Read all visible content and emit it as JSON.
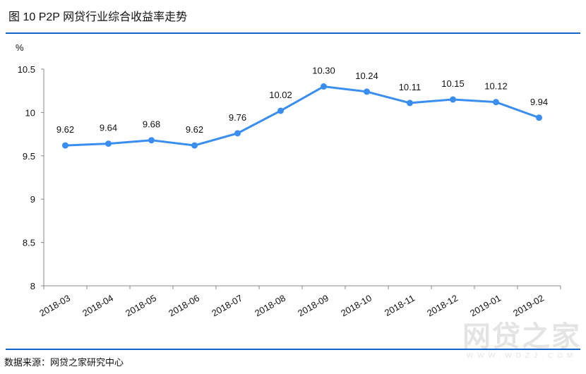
{
  "title": "图 10  P2P 网贷行业综合收益率走势",
  "source": "数据来源：网贷之家研究中心",
  "watermark": {
    "main": "网贷之家",
    "url": "WWW.WDZJ.COM"
  },
  "colors": {
    "line": "#3a8ef0",
    "rule": "#1565c8",
    "axis": "#888888"
  },
  "chart_data": {
    "type": "line",
    "title": "P2P 网贷行业综合收益率走势",
    "ylabel": "%",
    "xlabel": "",
    "ylim": [
      8,
      10.5
    ],
    "yticks": [
      "8",
      "8.5",
      "9",
      "9.5",
      "10",
      "10.5"
    ],
    "ytick_values": [
      8,
      8.5,
      9,
      9.5,
      10,
      10.5
    ],
    "categories": [
      "2018-03",
      "2018-04",
      "2018-05",
      "2018-06",
      "2018-07",
      "2018-08",
      "2018-09",
      "2018-10",
      "2018-11",
      "2018-12",
      "2019-01",
      "2019-02"
    ],
    "series": [
      {
        "name": "综合收益率",
        "values": [
          9.62,
          9.64,
          9.68,
          9.62,
          9.76,
          10.02,
          10.3,
          10.24,
          10.11,
          10.15,
          10.12,
          9.94
        ]
      }
    ],
    "data_labels": [
      "9.62",
      "9.64",
      "9.68",
      "9.62",
      "9.76",
      "10.02",
      "10.30",
      "10.24",
      "10.11",
      "10.15",
      "10.12",
      "9.94"
    ],
    "grid": false,
    "legend": "none"
  }
}
